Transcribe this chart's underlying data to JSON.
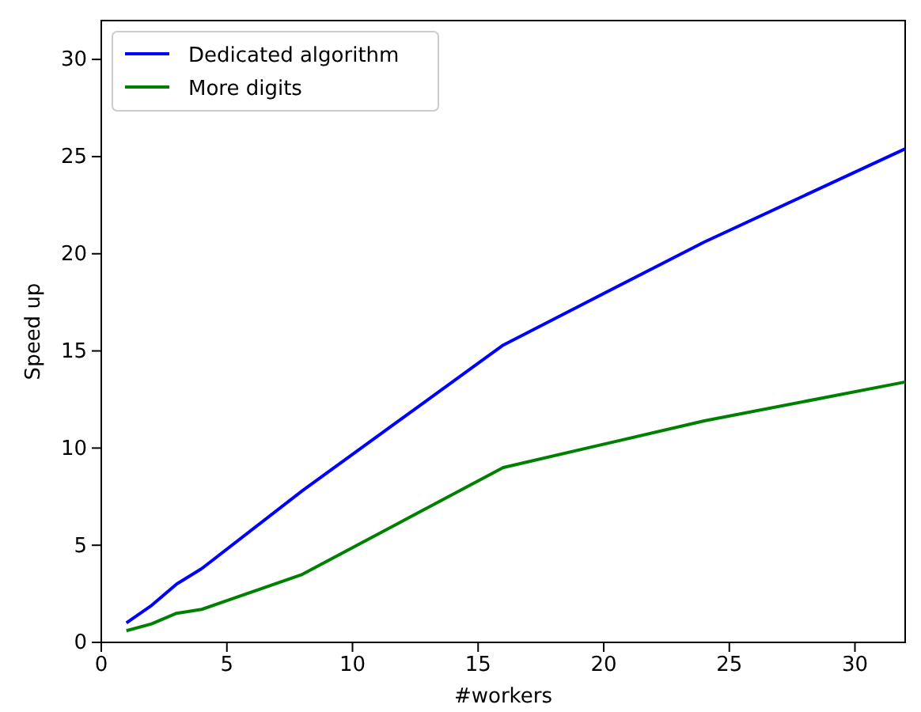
{
  "chart_data": {
    "type": "line",
    "xlabel": "#workers",
    "ylabel": "Speed up",
    "x": [
      1,
      2,
      3,
      4,
      8,
      16,
      24,
      32
    ],
    "series": [
      {
        "name": "Dedicated algorithm",
        "color": "#0000ff",
        "values": [
          1.0,
          1.9,
          3.0,
          3.8,
          7.8,
          15.3,
          20.6,
          25.4
        ]
      },
      {
        "name": "More digits",
        "color": "#008000",
        "values": [
          0.6,
          0.95,
          1.5,
          1.7,
          3.5,
          9.0,
          11.4,
          13.4
        ]
      }
    ],
    "xlim": [
      0,
      32
    ],
    "ylim": [
      0,
      32
    ],
    "xticks": [
      0,
      5,
      10,
      15,
      20,
      25,
      30
    ],
    "yticks": [
      0,
      5,
      10,
      15,
      20,
      25,
      30
    ],
    "legend": "top left",
    "grid": false,
    "marker": "none",
    "line_style": "solid"
  }
}
